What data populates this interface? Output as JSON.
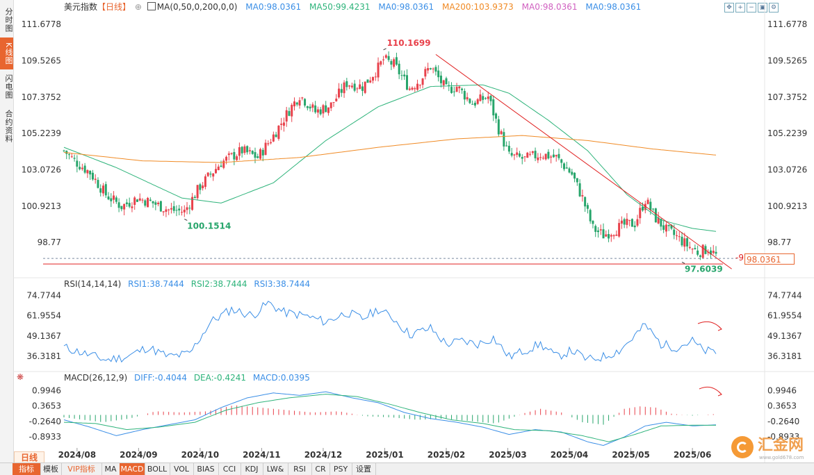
{
  "left_tabs": [
    {
      "label": "分时图",
      "active": false
    },
    {
      "label": "K线图",
      "active": true
    },
    {
      "label": "闪电图",
      "active": false
    },
    {
      "label": "合约资料",
      "active": false
    }
  ],
  "main_legend": {
    "name": "美元指数",
    "period": "【日线】",
    "ma_set": "MA(0,50,0,200,0,0)",
    "items": [
      {
        "text": "MA0:98.0361",
        "color": "#3a8ee6"
      },
      {
        "text": "MA50:99.4231",
        "color": "#2db37a"
      },
      {
        "text": "MA0:98.0361",
        "color": "#3a8ee6"
      },
      {
        "text": "MA200:103.9373",
        "color": "#f08a24"
      },
      {
        "text": "MA0:98.0361",
        "color": "#d060c0"
      },
      {
        "text": "MA0:98.0361",
        "color": "#3a8ee6"
      }
    ]
  },
  "rsi_legend": {
    "name": "RSI(14,14,14)",
    "items": [
      {
        "text": "RSI1:38.7444",
        "color": "#3a8ee6"
      },
      {
        "text": "RSI2:38.7444",
        "color": "#2db37a"
      },
      {
        "text": "RSI3:38.7444",
        "color": "#3a8ee6"
      }
    ]
  },
  "macd_legend": {
    "name": "MACD(26,12,9)",
    "items": [
      {
        "text": "DIFF:-0.4044",
        "color": "#3a8ee6"
      },
      {
        "text": "DEA:-0.4241",
        "color": "#2db37a"
      },
      {
        "text": "MACD:0.0395",
        "color": "#3a8ee6"
      }
    ]
  },
  "current_price_flag": "98.0361",
  "period_chip": "日线",
  "bottom_tabs": [
    {
      "label": "指标",
      "active": true
    },
    {
      "label": "模板",
      "active": false
    },
    {
      "label": "VIP指标",
      "vip": true
    },
    {
      "label": "MA",
      "active": false
    },
    {
      "label": "MACD",
      "active": true
    },
    {
      "label": "BOLL"
    },
    {
      "label": "VOL"
    },
    {
      "label": "BIAS"
    },
    {
      "label": "CCI"
    },
    {
      "label": "KDJ"
    },
    {
      "label": "LW&"
    },
    {
      "label": "RSI"
    },
    {
      "label": "CR"
    },
    {
      "label": "PSY"
    },
    {
      "label": "设置"
    }
  ],
  "logo": {
    "name": "汇金网",
    "url": "www.gold678.com"
  },
  "toolbar_icons": [
    "move-icon",
    "zoom-in-icon",
    "zoom-out-icon",
    "fullscreen-icon",
    "settings-icon"
  ],
  "colors": {
    "up": "#e8414b",
    "down": "#27a56b",
    "ma50": "#2db37a",
    "ma200": "#f08a24",
    "trendline": "#e02020",
    "accent": "#e8652f"
  },
  "chart_data": [
    {
      "type": "candlestick",
      "title": "美元指数【日线】",
      "x_ticks": [
        "2024/08",
        "2024/09",
        "2024/10",
        "2024/11",
        "2024/12",
        "2025/01",
        "2025/02",
        "2025/03",
        "2025/04",
        "2025/05",
        "2025/06"
      ],
      "y_ticks": [
        111.6778,
        109.5265,
        107.3752,
        105.2239,
        103.0726,
        100.9213,
        98.77
      ],
      "ylim": [
        96.8,
        112.3
      ],
      "annotations": [
        {
          "text": "110.1699",
          "label": "high",
          "x_index": 122,
          "value": 110.1699,
          "color": "#e8414b"
        },
        {
          "text": "100.1514",
          "label": "low",
          "x_index": 46,
          "value": 100.1514,
          "color": "#27a56b"
        },
        {
          "text": "97.6039",
          "label": "low",
          "x_index": 236,
          "value": 97.6039,
          "color": "#27a56b"
        },
        {
          "text": "97.7400",
          "label": "horizontal",
          "value": 97.74,
          "color": "#e02020"
        }
      ],
      "close_series_keypoints": [
        {
          "i": 0,
          "v": 104.2
        },
        {
          "i": 4,
          "v": 103.6
        },
        {
          "i": 10,
          "v": 102.9
        },
        {
          "i": 16,
          "v": 101.6
        },
        {
          "i": 22,
          "v": 100.9
        },
        {
          "i": 28,
          "v": 101.4
        },
        {
          "i": 34,
          "v": 101.1
        },
        {
          "i": 40,
          "v": 100.7
        },
        {
          "i": 46,
          "v": 100.6
        },
        {
          "i": 52,
          "v": 102.1
        },
        {
          "i": 60,
          "v": 103.5
        },
        {
          "i": 68,
          "v": 104.2
        },
        {
          "i": 74,
          "v": 103.8
        },
        {
          "i": 80,
          "v": 105.1
        },
        {
          "i": 86,
          "v": 106.6
        },
        {
          "i": 90,
          "v": 107.5
        },
        {
          "i": 96,
          "v": 106.5
        },
        {
          "i": 102,
          "v": 106.9
        },
        {
          "i": 108,
          "v": 108.2
        },
        {
          "i": 114,
          "v": 108.0
        },
        {
          "i": 120,
          "v": 109.1
        },
        {
          "i": 122,
          "v": 109.6
        },
        {
          "i": 126,
          "v": 109.3
        },
        {
          "i": 132,
          "v": 107.9
        },
        {
          "i": 136,
          "v": 108.4
        },
        {
          "i": 140,
          "v": 109.2
        },
        {
          "i": 146,
          "v": 107.8
        },
        {
          "i": 150,
          "v": 108.0
        },
        {
          "i": 156,
          "v": 107.0
        },
        {
          "i": 162,
          "v": 107.4
        },
        {
          "i": 166,
          "v": 105.5
        },
        {
          "i": 170,
          "v": 103.9
        },
        {
          "i": 176,
          "v": 103.7
        },
        {
          "i": 182,
          "v": 104.0
        },
        {
          "i": 188,
          "v": 103.8
        },
        {
          "i": 194,
          "v": 102.8
        },
        {
          "i": 198,
          "v": 101.4
        },
        {
          "i": 202,
          "v": 99.6
        },
        {
          "i": 206,
          "v": 99.2
        },
        {
          "i": 210,
          "v": 99.5
        },
        {
          "i": 214,
          "v": 99.8
        },
        {
          "i": 218,
          "v": 99.9
        },
        {
          "i": 222,
          "v": 101.3
        },
        {
          "i": 226,
          "v": 100.2
        },
        {
          "i": 230,
          "v": 99.5
        },
        {
          "i": 234,
          "v": 99.1
        },
        {
          "i": 238,
          "v": 98.6
        },
        {
          "i": 242,
          "v": 98.2
        },
        {
          "i": 246,
          "v": 98.4
        },
        {
          "i": 249,
          "v": 98.0
        }
      ],
      "ma50_keypoints": [
        {
          "i": 0,
          "v": 104.4
        },
        {
          "i": 20,
          "v": 103.2
        },
        {
          "i": 45,
          "v": 101.4
        },
        {
          "i": 60,
          "v": 101.1
        },
        {
          "i": 80,
          "v": 102.3
        },
        {
          "i": 100,
          "v": 104.8
        },
        {
          "i": 120,
          "v": 106.8
        },
        {
          "i": 140,
          "v": 108.0
        },
        {
          "i": 160,
          "v": 108.1
        },
        {
          "i": 170,
          "v": 107.6
        },
        {
          "i": 185,
          "v": 106.0
        },
        {
          "i": 200,
          "v": 104.2
        },
        {
          "i": 215,
          "v": 101.6
        },
        {
          "i": 228,
          "v": 100.1
        },
        {
          "i": 240,
          "v": 99.6
        },
        {
          "i": 249,
          "v": 99.42
        }
      ],
      "ma200_keypoints": [
        {
          "i": 0,
          "v": 104.1
        },
        {
          "i": 30,
          "v": 103.6
        },
        {
          "i": 60,
          "v": 103.5
        },
        {
          "i": 90,
          "v": 103.8
        },
        {
          "i": 120,
          "v": 104.4
        },
        {
          "i": 150,
          "v": 104.9
        },
        {
          "i": 175,
          "v": 105.1
        },
        {
          "i": 200,
          "v": 104.8
        },
        {
          "i": 225,
          "v": 104.3
        },
        {
          "i": 249,
          "v": 103.94
        }
      ],
      "trendline": [
        {
          "i": 142,
          "v": 109.9
        },
        {
          "i": 255,
          "v": 97.2
        }
      ],
      "horizontal_line": 97.74
    },
    {
      "type": "line",
      "title": "RSI(14,14,14)",
      "y_ticks": [
        74.7744,
        61.9554,
        49.1367,
        36.3181
      ],
      "ylim": [
        28,
        78
      ],
      "series_keypoints": [
        {
          "i": 0,
          "v": 42
        },
        {
          "i": 8,
          "v": 38
        },
        {
          "i": 16,
          "v": 34
        },
        {
          "i": 24,
          "v": 36
        },
        {
          "i": 32,
          "v": 42
        },
        {
          "i": 40,
          "v": 36
        },
        {
          "i": 48,
          "v": 38
        },
        {
          "i": 56,
          "v": 58
        },
        {
          "i": 64,
          "v": 66
        },
        {
          "i": 72,
          "v": 62
        },
        {
          "i": 78,
          "v": 70
        },
        {
          "i": 84,
          "v": 64
        },
        {
          "i": 92,
          "v": 62
        },
        {
          "i": 100,
          "v": 58
        },
        {
          "i": 108,
          "v": 64
        },
        {
          "i": 114,
          "v": 60
        },
        {
          "i": 120,
          "v": 66
        },
        {
          "i": 126,
          "v": 60
        },
        {
          "i": 132,
          "v": 50
        },
        {
          "i": 140,
          "v": 54
        },
        {
          "i": 146,
          "v": 44
        },
        {
          "i": 152,
          "v": 46
        },
        {
          "i": 158,
          "v": 44
        },
        {
          "i": 164,
          "v": 48
        },
        {
          "i": 170,
          "v": 36
        },
        {
          "i": 176,
          "v": 40
        },
        {
          "i": 182,
          "v": 44
        },
        {
          "i": 188,
          "v": 36
        },
        {
          "i": 194,
          "v": 40
        },
        {
          "i": 200,
          "v": 34
        },
        {
          "i": 206,
          "v": 36
        },
        {
          "i": 212,
          "v": 40
        },
        {
          "i": 216,
          "v": 46
        },
        {
          "i": 222,
          "v": 56
        },
        {
          "i": 228,
          "v": 44
        },
        {
          "i": 234,
          "v": 42
        },
        {
          "i": 240,
          "v": 46
        },
        {
          "i": 244,
          "v": 40
        },
        {
          "i": 249,
          "v": 38.7
        }
      ]
    },
    {
      "type": "line",
      "title": "MACD(26,12,9)",
      "y_ticks": [
        0.9946,
        0.3653,
        -0.264,
        -0.8933
      ],
      "ylim": [
        -1.35,
        1.35
      ],
      "diff_keypoints": [
        {
          "i": 0,
          "v": -0.2
        },
        {
          "i": 10,
          "v": -0.5
        },
        {
          "i": 20,
          "v": -0.85
        },
        {
          "i": 30,
          "v": -0.6
        },
        {
          "i": 40,
          "v": -0.4
        },
        {
          "i": 50,
          "v": -0.2
        },
        {
          "i": 60,
          "v": 0.3
        },
        {
          "i": 70,
          "v": 0.7
        },
        {
          "i": 80,
          "v": 0.9
        },
        {
          "i": 90,
          "v": 0.8
        },
        {
          "i": 100,
          "v": 0.95
        },
        {
          "i": 110,
          "v": 0.7
        },
        {
          "i": 120,
          "v": 0.5
        },
        {
          "i": 130,
          "v": 0.1
        },
        {
          "i": 140,
          "v": -0.15
        },
        {
          "i": 150,
          "v": -0.3
        },
        {
          "i": 160,
          "v": -0.5
        },
        {
          "i": 170,
          "v": -0.8
        },
        {
          "i": 180,
          "v": -0.6
        },
        {
          "i": 190,
          "v": -0.7
        },
        {
          "i": 200,
          "v": -1.1
        },
        {
          "i": 206,
          "v": -1.25
        },
        {
          "i": 214,
          "v": -0.9
        },
        {
          "i": 222,
          "v": -0.45
        },
        {
          "i": 230,
          "v": -0.3
        },
        {
          "i": 240,
          "v": -0.45
        },
        {
          "i": 249,
          "v": -0.4044
        }
      ],
      "dea_keypoints": [
        {
          "i": 0,
          "v": -0.3
        },
        {
          "i": 12,
          "v": -0.35
        },
        {
          "i": 24,
          "v": -0.6
        },
        {
          "i": 36,
          "v": -0.5
        },
        {
          "i": 50,
          "v": -0.3
        },
        {
          "i": 62,
          "v": 0.2
        },
        {
          "i": 74,
          "v": 0.5
        },
        {
          "i": 86,
          "v": 0.7
        },
        {
          "i": 100,
          "v": 0.85
        },
        {
          "i": 112,
          "v": 0.75
        },
        {
          "i": 124,
          "v": 0.45
        },
        {
          "i": 136,
          "v": 0.1
        },
        {
          "i": 148,
          "v": -0.2
        },
        {
          "i": 160,
          "v": -0.35
        },
        {
          "i": 172,
          "v": -0.6
        },
        {
          "i": 186,
          "v": -0.65
        },
        {
          "i": 198,
          "v": -0.85
        },
        {
          "i": 208,
          "v": -1.1
        },
        {
          "i": 218,
          "v": -0.8
        },
        {
          "i": 228,
          "v": -0.45
        },
        {
          "i": 240,
          "v": -0.42
        },
        {
          "i": 249,
          "v": -0.4241
        }
      ],
      "hist_keypoints": [
        {
          "i": 0,
          "v": -0.1
        },
        {
          "i": 15,
          "v": -0.3
        },
        {
          "i": 25,
          "v": -0.15
        },
        {
          "i": 35,
          "v": 0.15
        },
        {
          "i": 45,
          "v": 0.1
        },
        {
          "i": 55,
          "v": 0.15
        },
        {
          "i": 65,
          "v": 0.4
        },
        {
          "i": 75,
          "v": 0.3
        },
        {
          "i": 85,
          "v": 0.2
        },
        {
          "i": 95,
          "v": 0.1
        },
        {
          "i": 105,
          "v": 0.15
        },
        {
          "i": 115,
          "v": -0.05
        },
        {
          "i": 125,
          "v": -0.1
        },
        {
          "i": 135,
          "v": -0.2
        },
        {
          "i": 145,
          "v": -0.15
        },
        {
          "i": 155,
          "v": -0.25
        },
        {
          "i": 165,
          "v": -0.35
        },
        {
          "i": 175,
          "v": 0.05
        },
        {
          "i": 182,
          "v": 0.25
        },
        {
          "i": 190,
          "v": 0.1
        },
        {
          "i": 198,
          "v": -0.3
        },
        {
          "i": 206,
          "v": -0.4
        },
        {
          "i": 214,
          "v": 0.25
        },
        {
          "i": 220,
          "v": 0.35
        },
        {
          "i": 226,
          "v": 0.3
        },
        {
          "i": 232,
          "v": 0.05
        },
        {
          "i": 240,
          "v": -0.03
        },
        {
          "i": 249,
          "v": 0.04
        }
      ]
    }
  ]
}
